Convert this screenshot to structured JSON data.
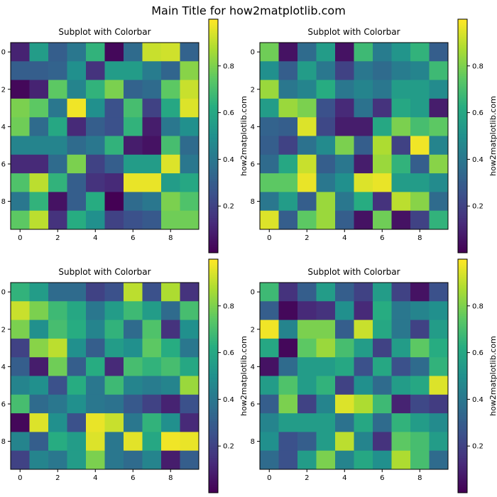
{
  "figure": {
    "title": "Main Title for how2matplotlib.com"
  },
  "colormap": "viridis",
  "chart_data": [
    {
      "type": "heatmap",
      "title": "Subplot with Colorbar",
      "colorbar_label": "how2matplotlib.com",
      "x_ticks": [
        0,
        2,
        4,
        6,
        8
      ],
      "y_ticks": [
        0,
        2,
        4,
        6,
        8
      ],
      "colorbar_ticks": [
        0.2,
        0.4,
        0.6,
        0.8
      ],
      "value_range": [
        0.0,
        1.0
      ],
      "grid": false,
      "values": [
        [
          0.1,
          0.55,
          0.3,
          0.4,
          0.65,
          0.02,
          0.35,
          0.92,
          0.93,
          0.32
        ],
        [
          0.3,
          0.3,
          0.32,
          0.5,
          0.15,
          0.55,
          0.55,
          0.42,
          0.33,
          0.82
        ],
        [
          0.02,
          0.1,
          0.75,
          0.45,
          0.65,
          0.8,
          0.32,
          0.35,
          0.75,
          0.92
        ],
        [
          0.8,
          0.75,
          0.4,
          0.98,
          0.5,
          0.25,
          0.7,
          0.2,
          0.6,
          0.95
        ],
        [
          0.78,
          0.35,
          0.6,
          0.12,
          0.3,
          0.25,
          0.65,
          0.08,
          0.4,
          0.5
        ],
        [
          0.45,
          0.45,
          0.45,
          0.35,
          0.4,
          0.65,
          0.08,
          0.05,
          0.7,
          0.35
        ],
        [
          0.12,
          0.12,
          0.35,
          0.8,
          0.2,
          0.3,
          0.55,
          0.55,
          0.95,
          0.4
        ],
        [
          0.72,
          0.9,
          0.65,
          0.3,
          0.15,
          0.12,
          0.97,
          0.97,
          0.55,
          0.6
        ],
        [
          0.4,
          0.65,
          0.05,
          0.3,
          0.62,
          0.0,
          0.35,
          0.4,
          0.8,
          0.72
        ],
        [
          0.75,
          0.9,
          0.15,
          0.62,
          0.5,
          0.2,
          0.25,
          0.28,
          0.78,
          0.78
        ]
      ]
    },
    {
      "type": "heatmap",
      "title": "Subplot with Colorbar",
      "colorbar_label": "how2matplotlib.com",
      "x_ticks": [
        0,
        2,
        4,
        6,
        8
      ],
      "y_ticks": [
        0,
        2,
        4,
        6,
        8
      ],
      "colorbar_ticks": [
        0.2,
        0.4,
        0.6,
        0.8
      ],
      "value_range": [
        0.0,
        1.0
      ],
      "grid": false,
      "values": [
        [
          0.78,
          0.05,
          0.35,
          0.55,
          0.05,
          0.68,
          0.42,
          0.52,
          0.65,
          0.3
        ],
        [
          0.5,
          0.3,
          0.55,
          0.4,
          0.2,
          0.4,
          0.35,
          0.42,
          0.45,
          0.68
        ],
        [
          0.85,
          0.4,
          0.45,
          0.62,
          0.4,
          0.45,
          0.4,
          0.55,
          0.55,
          0.48
        ],
        [
          0.55,
          0.85,
          0.8,
          0.25,
          0.12,
          0.38,
          0.15,
          0.6,
          0.55,
          0.08
        ],
        [
          0.32,
          0.3,
          0.95,
          0.22,
          0.08,
          0.08,
          0.6,
          0.8,
          0.7,
          0.75
        ],
        [
          0.3,
          0.2,
          0.38,
          0.48,
          0.8,
          0.3,
          0.88,
          0.2,
          0.98,
          0.45
        ],
        [
          0.35,
          0.6,
          0.92,
          0.3,
          0.4,
          0.08,
          0.85,
          0.65,
          0.3,
          0.82
        ],
        [
          0.75,
          0.75,
          0.97,
          0.4,
          0.5,
          0.95,
          0.97,
          0.55,
          0.55,
          0.48
        ],
        [
          0.4,
          0.55,
          0.3,
          0.85,
          0.4,
          0.62,
          0.15,
          0.9,
          0.82,
          0.35
        ],
        [
          0.95,
          0.3,
          0.75,
          0.85,
          0.3,
          0.05,
          0.78,
          0.05,
          0.2,
          0.65
        ]
      ]
    },
    {
      "type": "heatmap",
      "title": "Subplot with Colorbar",
      "colorbar_label": "how2matplotlib.com",
      "x_ticks": [
        0,
        2,
        4,
        6,
        8
      ],
      "y_ticks": [
        0,
        2,
        4,
        6,
        8
      ],
      "colorbar_ticks": [
        0.2,
        0.4,
        0.6,
        0.8
      ],
      "value_range": [
        0.0,
        1.0
      ],
      "grid": false,
      "values": [
        [
          0.65,
          0.55,
          0.35,
          0.35,
          0.2,
          0.25,
          0.9,
          0.25,
          0.88,
          0.15
        ],
        [
          0.92,
          0.8,
          0.68,
          0.6,
          0.4,
          0.55,
          0.68,
          0.55,
          0.35,
          0.7
        ],
        [
          0.8,
          0.5,
          0.7,
          0.62,
          0.45,
          0.65,
          0.35,
          0.72,
          0.15,
          0.5
        ],
        [
          0.2,
          0.82,
          0.9,
          0.5,
          0.3,
          0.55,
          0.5,
          0.75,
          0.62,
          0.4
        ],
        [
          0.3,
          0.08,
          0.78,
          0.3,
          0.62,
          0.12,
          0.7,
          0.65,
          0.7,
          0.6
        ],
        [
          0.45,
          0.5,
          0.25,
          0.62,
          0.4,
          0.68,
          0.45,
          0.42,
          0.45,
          0.85
        ],
        [
          0.7,
          0.35,
          0.4,
          0.5,
          0.4,
          0.38,
          0.28,
          0.2,
          0.1,
          0.25
        ],
        [
          0.02,
          0.95,
          0.5,
          0.25,
          0.97,
          0.92,
          0.4,
          0.65,
          0.5,
          0.12
        ],
        [
          0.45,
          0.3,
          0.62,
          0.55,
          0.95,
          0.4,
          0.96,
          0.6,
          0.98,
          0.97
        ],
        [
          0.2,
          0.45,
          0.4,
          0.55,
          0.8,
          0.4,
          0.35,
          0.45,
          0.08,
          0.3
        ]
      ]
    },
    {
      "type": "heatmap",
      "title": "Subplot with Colorbar",
      "colorbar_label": "how2matplotlib.com",
      "x_ticks": [
        0,
        2,
        4,
        6,
        8
      ],
      "y_ticks": [
        0,
        2,
        4,
        6,
        8
      ],
      "colorbar_ticks": [
        0.2,
        0.4,
        0.6,
        0.8
      ],
      "value_range": [
        0.0,
        1.0
      ],
      "grid": false,
      "values": [
        [
          0.68,
          0.15,
          0.3,
          0.55,
          0.3,
          0.2,
          0.55,
          0.2,
          0.05,
          0.25
        ],
        [
          0.3,
          0.02,
          0.12,
          0.15,
          0.5,
          0.12,
          0.62,
          0.4,
          0.45,
          0.5
        ],
        [
          0.98,
          0.45,
          0.8,
          0.8,
          0.3,
          0.92,
          0.6,
          0.4,
          0.2,
          0.55
        ],
        [
          0.6,
          0.02,
          0.75,
          0.85,
          0.7,
          0.55,
          0.2,
          0.55,
          0.75,
          0.62
        ],
        [
          0.05,
          0.35,
          0.55,
          0.55,
          0.6,
          0.25,
          0.6,
          0.25,
          0.35,
          0.65
        ],
        [
          0.55,
          0.72,
          0.55,
          0.65,
          0.2,
          0.5,
          0.35,
          0.55,
          0.6,
          0.95
        ],
        [
          0.3,
          0.8,
          0.2,
          0.45,
          0.95,
          0.88,
          0.68,
          0.1,
          0.22,
          0.18
        ],
        [
          0.45,
          0.55,
          0.55,
          0.55,
          0.38,
          0.6,
          0.35,
          0.65,
          0.55,
          0.48
        ],
        [
          0.5,
          0.25,
          0.3,
          0.55,
          0.9,
          0.45,
          0.15,
          0.75,
          0.7,
          0.55
        ],
        [
          0.35,
          0.25,
          0.55,
          0.8,
          0.45,
          0.6,
          0.5,
          0.88,
          0.7,
          0.35
        ]
      ]
    }
  ]
}
